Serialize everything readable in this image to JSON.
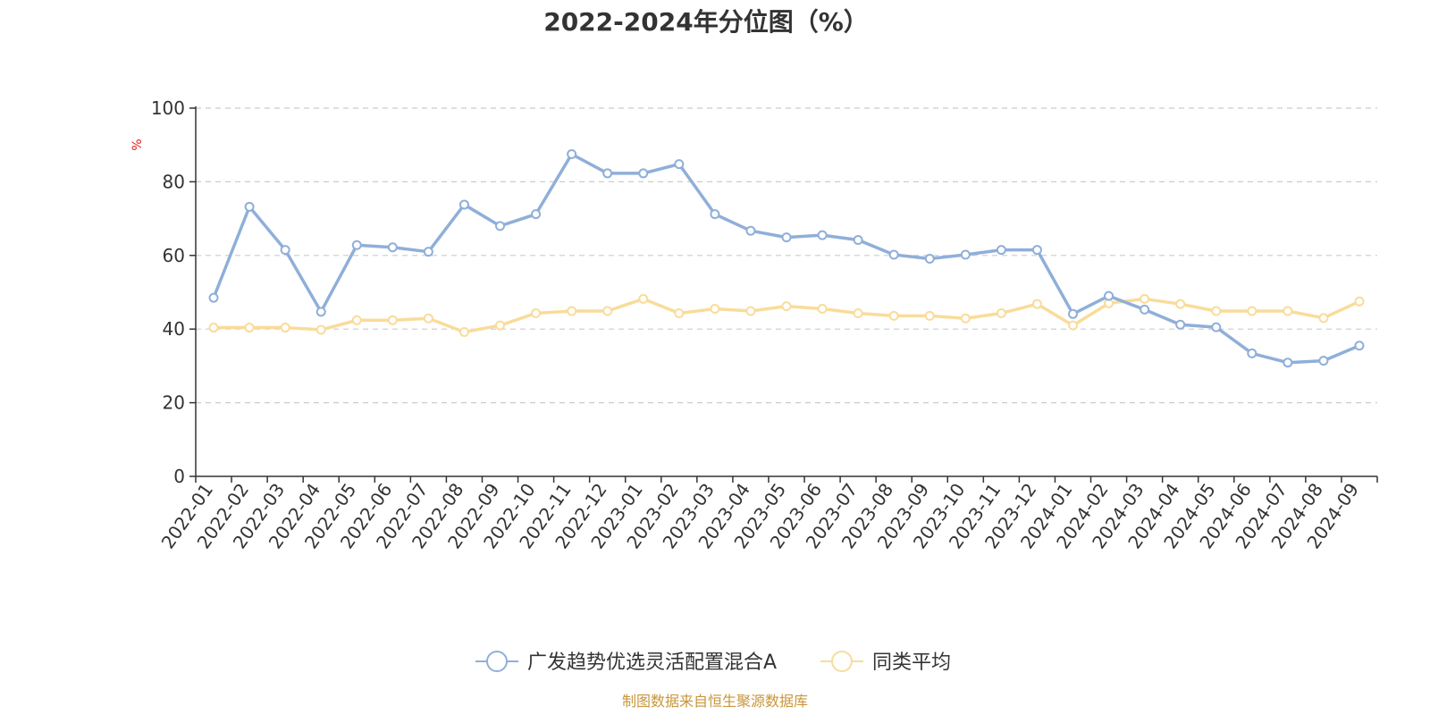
{
  "chart_data": {
    "type": "line",
    "title": "2022-2024年分位图（%）",
    "ylabel": "%",
    "ylim": [
      0,
      100
    ],
    "yticks": [
      0,
      20,
      40,
      60,
      80,
      100
    ],
    "grid": true,
    "legend_position": "bottom",
    "categories": [
      "2022-01",
      "2022-02",
      "2022-03",
      "2022-04",
      "2022-05",
      "2022-06",
      "2022-07",
      "2022-08",
      "2022-09",
      "2022-10",
      "2022-11",
      "2022-12",
      "2023-01",
      "2023-02",
      "2023-03",
      "2023-04",
      "2023-05",
      "2023-06",
      "2023-07",
      "2023-08",
      "2023-09",
      "2023-10",
      "2023-11",
      "2023-12",
      "2024-01",
      "2024-02",
      "2024-03",
      "2024-04",
      "2024-05",
      "2024-06",
      "2024-07",
      "2024-08",
      "2024-09"
    ],
    "series": [
      {
        "name": "广发趋势优选灵活配置混合A",
        "color": "#8fafd9",
        "values": [
          48.5,
          73.2,
          61.5,
          44.7,
          62.8,
          62.2,
          61.0,
          73.8,
          68.0,
          71.2,
          87.5,
          82.3,
          82.3,
          84.8,
          71.2,
          66.7,
          64.9,
          65.5,
          64.2,
          60.2,
          59.1,
          60.2,
          61.5,
          61.5,
          44.1,
          49.0,
          45.3,
          41.2,
          40.5,
          33.4,
          30.9,
          31.4,
          35.5
        ]
      },
      {
        "name": "同类平均",
        "color": "#f9dc9a",
        "values": [
          40.4,
          40.4,
          40.4,
          39.8,
          42.4,
          42.4,
          42.9,
          39.2,
          41.0,
          44.3,
          44.9,
          44.9,
          48.2,
          44.3,
          45.5,
          44.9,
          46.2,
          45.5,
          44.3,
          43.6,
          43.6,
          42.9,
          44.3,
          46.8,
          41.0,
          47.0,
          48.2,
          46.8,
          44.9,
          44.9,
          44.9,
          43.0,
          47.5
        ]
      }
    ]
  },
  "source": "制图数据来自恒生聚源数据库"
}
